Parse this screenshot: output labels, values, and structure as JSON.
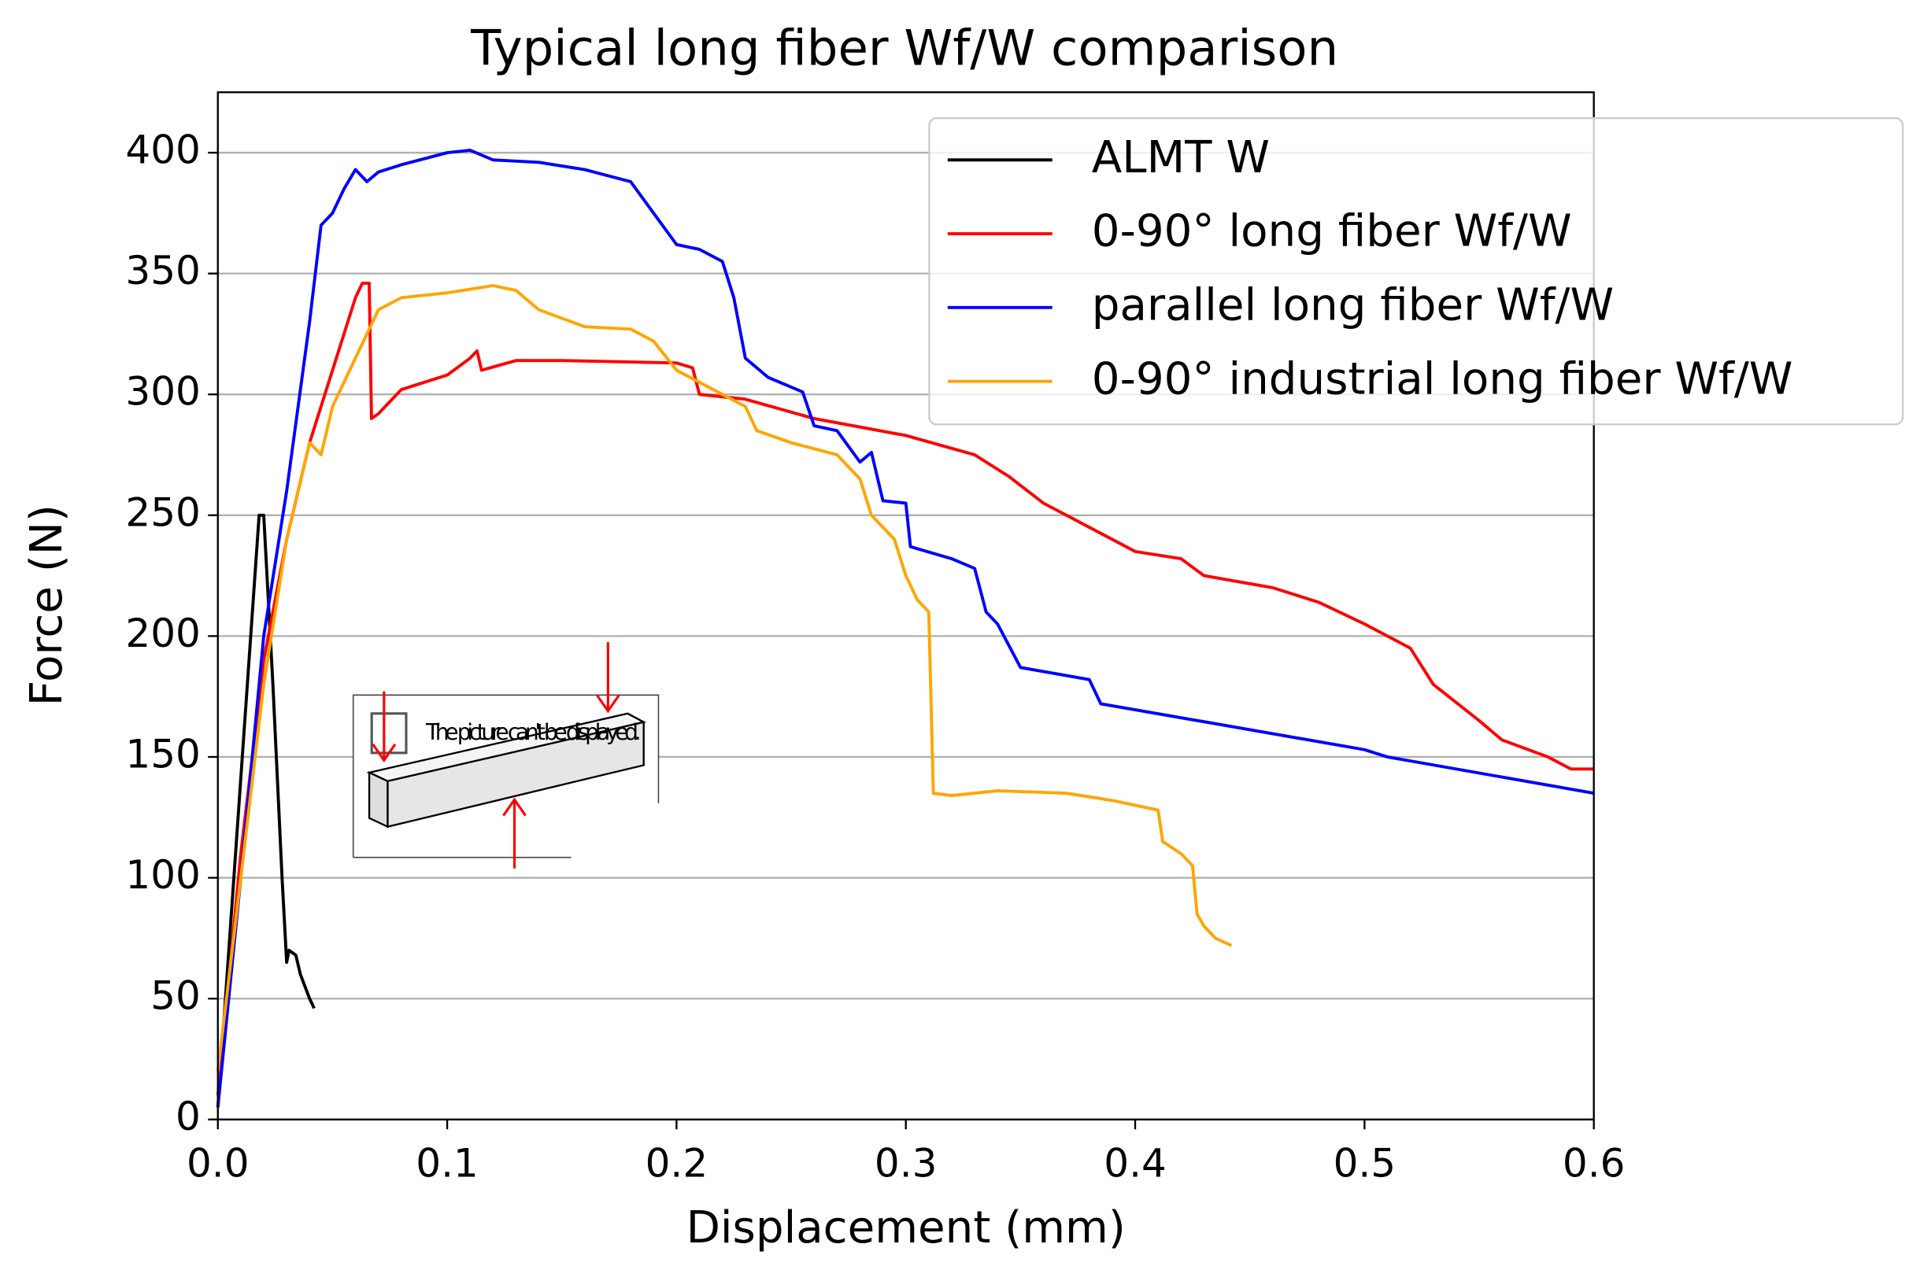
{
  "chart_data": {
    "type": "line",
    "title": "Typical long fiber Wf/W comparison",
    "x_label": "Displacement (mm)",
    "y_label": "Force (N)",
    "xlim": [
      0,
      0.6
    ],
    "ylim": [
      0,
      425
    ],
    "xticks": [
      {
        "value": 0,
        "label": "0.0"
      },
      0.1,
      0.2,
      0.3,
      0.4,
      0.5,
      0.6
    ],
    "yticks": [
      0,
      50,
      100,
      150,
      200,
      250,
      300,
      350,
      400
    ],
    "grid": "y",
    "legend": "upper right",
    "inset_text": "The picture can't be displayed.",
    "series": [
      {
        "name": "ALMT W",
        "color": "#000000",
        "x": [
          0,
          0.018,
          0.02,
          0.024,
          0.028,
          0.03,
          0.031,
          0.034,
          0.036,
          0.04,
          0.042
        ],
        "values": [
          5,
          250,
          250,
          180,
          100,
          65,
          70,
          68,
          60,
          50,
          46
        ]
      },
      {
        "name": "0-90° long fiber Wf/W",
        "color": "#ff0000",
        "x": [
          0,
          0.01,
          0.02,
          0.03,
          0.04,
          0.05,
          0.06,
          0.063,
          0.066,
          0.067,
          0.07,
          0.08,
          0.1,
          0.11,
          0.113,
          0.115,
          0.13,
          0.15,
          0.2,
          0.207,
          0.21,
          0.23,
          0.26,
          0.3,
          0.33,
          0.345,
          0.36,
          0.38,
          0.4,
          0.42,
          0.43,
          0.46,
          0.48,
          0.5,
          0.52,
          0.53,
          0.55,
          0.56,
          0.58,
          0.59,
          0.6
        ],
        "values": [
          10,
          110,
          190,
          240,
          280,
          310,
          340,
          346,
          346,
          290,
          292,
          302,
          308,
          315,
          318,
          310,
          314,
          314,
          313,
          311,
          300,
          298,
          290,
          283,
          275,
          266,
          255,
          245,
          235,
          232,
          225,
          220,
          214,
          205,
          195,
          180,
          165,
          157,
          150,
          145,
          145
        ]
      },
      {
        "name": "parallel long fiber Wf/W",
        "color": "#0000ff",
        "x": [
          0,
          0.01,
          0.02,
          0.03,
          0.04,
          0.045,
          0.05,
          0.055,
          0.06,
          0.065,
          0.07,
          0.08,
          0.1,
          0.11,
          0.12,
          0.14,
          0.16,
          0.18,
          0.19,
          0.2,
          0.21,
          0.22,
          0.225,
          0.23,
          0.24,
          0.255,
          0.26,
          0.27,
          0.28,
          0.285,
          0.29,
          0.3,
          0.302,
          0.32,
          0.33,
          0.335,
          0.34,
          0.35,
          0.38,
          0.385,
          0.5,
          0.51,
          0.6
        ],
        "values": [
          5,
          100,
          200,
          260,
          330,
          370,
          375,
          385,
          393,
          388,
          392,
          395,
          400,
          401,
          397,
          396,
          393,
          388,
          375,
          362,
          360,
          355,
          340,
          315,
          307,
          301,
          287,
          285,
          272,
          276,
          256,
          255,
          237,
          232,
          228,
          210,
          205,
          187,
          182,
          172,
          153,
          150,
          135
        ]
      },
      {
        "name": "0-90° industrial long fiber Wf/W",
        "color": "#ffa500",
        "x": [
          0,
          0.01,
          0.02,
          0.03,
          0.04,
          0.045,
          0.05,
          0.06,
          0.065,
          0.07,
          0.08,
          0.1,
          0.12,
          0.13,
          0.14,
          0.16,
          0.18,
          0.19,
          0.2,
          0.22,
          0.23,
          0.235,
          0.25,
          0.27,
          0.28,
          0.285,
          0.295,
          0.3,
          0.305,
          0.31,
          0.312,
          0.32,
          0.34,
          0.37,
          0.39,
          0.41,
          0.412,
          0.42,
          0.425,
          0.427,
          0.43,
          0.435,
          0.442
        ],
        "values": [
          20,
          100,
          180,
          240,
          280,
          275,
          295,
          315,
          325,
          335,
          340,
          342,
          345,
          343,
          335,
          328,
          327,
          322,
          310,
          300,
          295,
          285,
          280,
          275,
          265,
          250,
          240,
          225,
          215,
          210,
          135,
          134,
          136,
          135,
          132,
          128,
          115,
          110,
          105,
          85,
          80,
          75,
          72
        ]
      }
    ]
  }
}
